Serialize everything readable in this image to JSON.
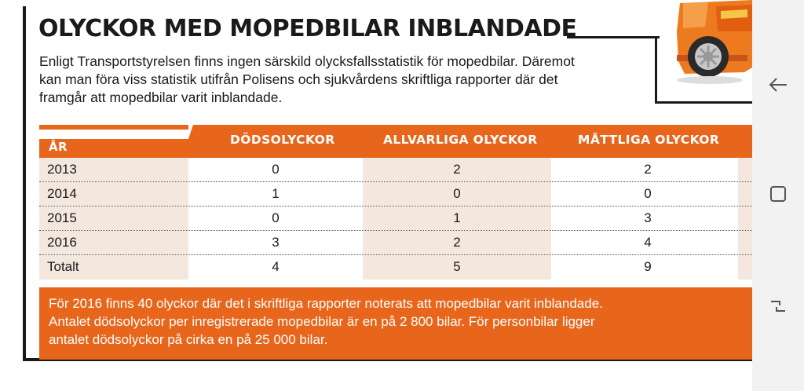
{
  "article": {
    "title": "OLYCKOR MED MOPEDBILAR INBLANDADE",
    "intro_lines": [
      "Enligt Transportstyrelsen finns ingen särskild olycksfallsstatistik för mopedbilar. Däremot",
      "kan man föra viss statistik utifrån Polisens och sjukvårdens skriftliga rapporter där det",
      "framgår att mopedbilar varit inblandade."
    ],
    "note_lines": [
      "För 2016 finns 40 olyckor där det i skriftliga rapporter noterats att mopedbilar varit inblandade.",
      "Antalet dödsolyckor per inregistrerade mopedbilar är en på 2 800 bilar. För personbilar ligger",
      "antalet dödsolyckor på cirka en på 25 000 bilar."
    ]
  },
  "table": {
    "headers": {
      "year": "ÅR",
      "deaths": "DÖDSOLYCKOR",
      "serious": "ALLVARLIGA OLYCKOR",
      "moderate": "MÅTTLIGA OLYCKOR"
    },
    "rows": [
      {
        "year": "2013",
        "deaths": "0",
        "serious": "2",
        "moderate": "2"
      },
      {
        "year": "2014",
        "deaths": "1",
        "serious": "0",
        "moderate": "0"
      },
      {
        "year": "2015",
        "deaths": "0",
        "serious": "1",
        "moderate": "3"
      },
      {
        "year": "2016",
        "deaths": "3",
        "serious": "2",
        "moderate": "4"
      },
      {
        "year": "Totalt",
        "deaths": "4",
        "serious": "5",
        "moderate": "9"
      }
    ]
  },
  "colors": {
    "accent_orange": "#e8661c",
    "row_tint": "#f4e7dd",
    "text_dark": "#1a1a1a"
  },
  "navbar": {
    "icons": [
      "back-arrow-icon",
      "home-square-icon",
      "recent-apps-icon"
    ]
  }
}
